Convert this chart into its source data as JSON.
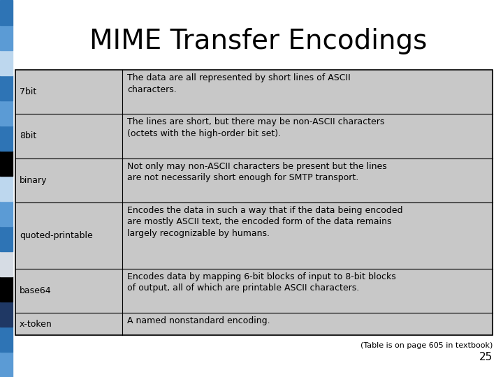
{
  "title": "MIME Transfer Encodings",
  "title_fontsize": 28,
  "title_color": "#000000",
  "background_color": "#ffffff",
  "table_bg": "#c8c8c8",
  "table_border": "#000000",
  "left_bar_segments": [
    "#5b9bd5",
    "#2e74b5",
    "#1f3864",
    "#000000",
    "#d6dce4",
    "#2e74b5",
    "#5b9bd5",
    "#bdd7ee",
    "#000000",
    "#2e74b5",
    "#5b9bd5",
    "#2e74b5",
    "#bdd7ee",
    "#5b9bd5",
    "#2e74b5"
  ],
  "rows": [
    {
      "encoding": "7bit",
      "description": "The data are all represented by short lines of ASCII\ncharacters.",
      "num_lines": 2
    },
    {
      "encoding": "8bit",
      "description": "The lines are short, but there may be non-ASCII characters\n(octets with the high-order bit set).",
      "num_lines": 2
    },
    {
      "encoding": "binary",
      "description": "Not only may non-ASCII characters be present but the lines\nare not necessarily short enough for SMTP transport.",
      "num_lines": 2
    },
    {
      "encoding": "quoted-printable",
      "description": "Encodes the data in such a way that if the data being encoded\nare mostly ASCII text, the encoded form of the data remains\nlargely recognizable by humans.",
      "num_lines": 3
    },
    {
      "encoding": "base64",
      "description": "Encodes data by mapping 6-bit blocks of input to 8-bit blocks\nof output, all of which are printable ASCII characters.",
      "num_lines": 2
    },
    {
      "encoding": "x-token",
      "description": "A named nonstandard encoding.",
      "num_lines": 1
    }
  ],
  "footnote": "(Table is on page 605 in textbook)",
  "page_number": "25",
  "footnote_fontsize": 8,
  "page_fontsize": 11,
  "cell_fontsize": 9,
  "encoding_fontsize": 9
}
